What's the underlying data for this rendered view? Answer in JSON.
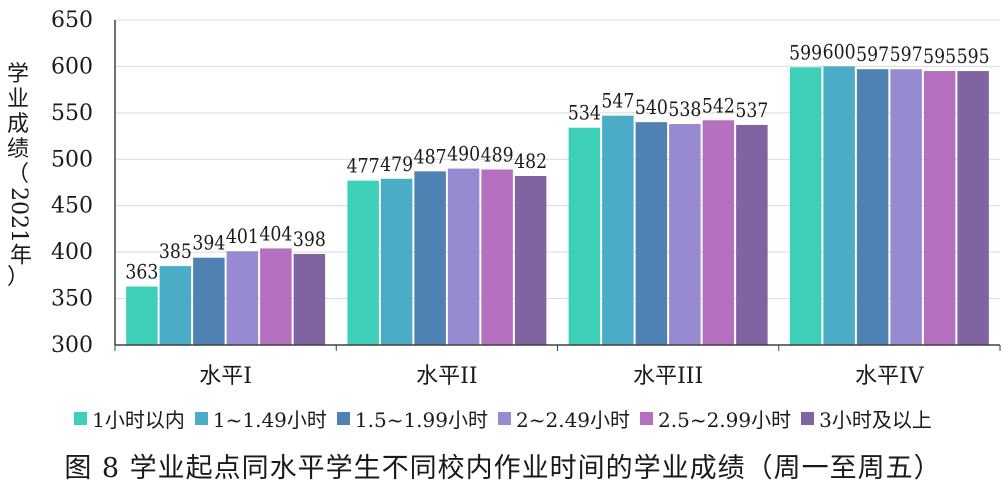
{
  "figure": {
    "caption": "图 8    学业起点同水平学生不同校内作业时间的学业成绩（周一至周五）"
  },
  "chart_data": {
    "type": "bar",
    "title": "",
    "ylabel_chars": [
      "学",
      "业",
      "成",
      "绩",
      "（",
      "2021年",
      "）"
    ],
    "ylabel": "学业成绩（2021年）",
    "xlabel": "",
    "ylim": [
      300,
      650
    ],
    "yticks": [
      300,
      350,
      400,
      450,
      500,
      550,
      600,
      650
    ],
    "grid": true,
    "legend_position": "bottom",
    "categories": [
      "水平I",
      "水平II",
      "水平III",
      "水平IV"
    ],
    "series": [
      {
        "name": "1小时以内",
        "color": "#3ecfb9",
        "values": [
          363,
          477,
          534,
          599
        ]
      },
      {
        "name": "1~1.49小时",
        "color": "#4bacc6",
        "values": [
          385,
          479,
          547,
          600
        ]
      },
      {
        "name": "1.5~1.99小时",
        "color": "#4f81b3",
        "values": [
          394,
          487,
          540,
          597
        ]
      },
      {
        "name": "2~2.49小时",
        "color": "#968ad0",
        "values": [
          401,
          490,
          538,
          597
        ]
      },
      {
        "name": "2.5~2.99小时",
        "color": "#b56fbf",
        "values": [
          404,
          489,
          542,
          595
        ]
      },
      {
        "name": "3小时及以上",
        "color": "#8064a2",
        "values": [
          398,
          482,
          537,
          595
        ]
      }
    ]
  }
}
